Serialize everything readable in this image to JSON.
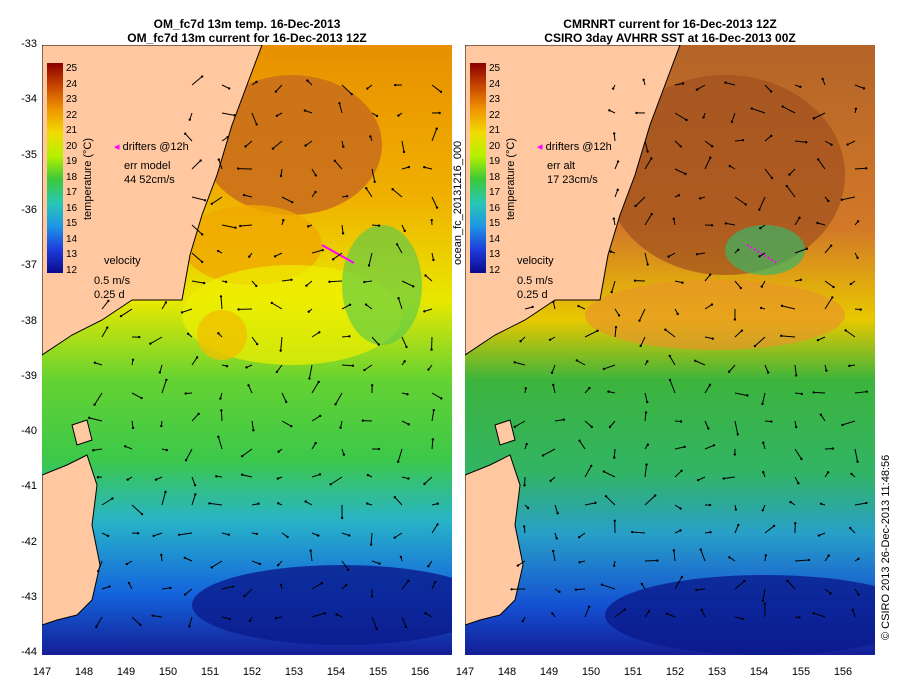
{
  "left_panel": {
    "title_line1": "OM_fc7d 13m temp. 16-Dec-2013",
    "title_line2": "OM_fc7d 13m current for 16-Dec-2013 12Z",
    "err_label": "err model",
    "err_value": "44 52cm/s"
  },
  "right_panel": {
    "title_line1": "CMRNRT current for 16-Dec-2013 12Z",
    "title_line2": "CSIRO 3day AVHRR SST at 16-Dec-2013 00Z",
    "err_label": "err alt",
    "err_value": "17 23cm/s"
  },
  "legend": {
    "drifters": "drifters @12h",
    "velocity_label": "velocity",
    "velocity_speed": "0.5 m/s",
    "velocity_time": "0.25 d",
    "colorbar_label": "temperature (°C)",
    "colorbar_ticks": [
      "25",
      "24",
      "23",
      "22",
      "21",
      "20",
      "19",
      "18",
      "17",
      "16",
      "15",
      "14",
      "13",
      "12"
    ]
  },
  "axes": {
    "lat_ticks": [
      "-33",
      "-34",
      "-35",
      "-36",
      "-37",
      "-38",
      "-39",
      "-40",
      "-41",
      "-42",
      "-43",
      "-44"
    ],
    "lon_ticks": [
      "147",
      "148",
      "149",
      "150",
      "151",
      "152",
      "153",
      "154",
      "155",
      "156"
    ]
  },
  "side_labels": {
    "middle": "ocean_fc_20131216_000",
    "right": "© CSIRO 2013   26-Dec-2013 11:48:56"
  },
  "colors": {
    "land": "#ffc8a0",
    "warm": "#c86414",
    "orange": "#f0a000",
    "yellow": "#f0f000",
    "green": "#3cc83c",
    "cyan": "#28b4c8",
    "blue": "#1464dc",
    "deep_blue": "#0a0a8c",
    "drifter": "#ff00ff",
    "arrow": "#000000"
  }
}
